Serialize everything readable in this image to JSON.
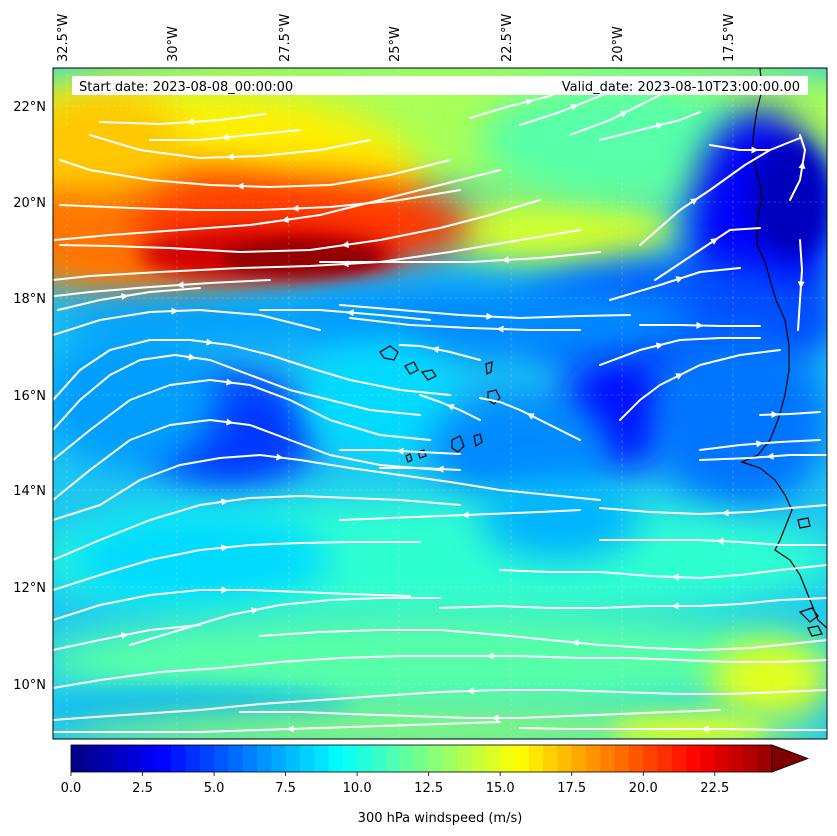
{
  "header": {
    "start_date": "Start date: 2023-08-08_00:00:00",
    "valid_date": "Valid_date: 2023-08-10T23:00:00.00"
  },
  "lon_labels": [
    "32.5°W",
    "30°W",
    "27.5°W",
    "25°W",
    "22.5°W",
    "20°W",
    "17.5°W"
  ],
  "lat_labels": [
    "22°N",
    "20°N",
    "18°N",
    "16°N",
    "14°N",
    "12°N",
    "10°N"
  ],
  "colorbar": {
    "ticks": [
      "0.0",
      "2.5",
      "5.0",
      "7.5",
      "10.0",
      "12.5",
      "15.0",
      "17.5",
      "20.0",
      "22.5"
    ],
    "label": "300 hPa windspeed (m/s)",
    "min": 0,
    "max": 25,
    "extend": "max",
    "colormap": "jet"
  },
  "colors": {
    "streamline": "#ffffff",
    "coastline": "#000000",
    "jet_dark_blue": "#00008f",
    "jet_cyan": "#00ffff",
    "jet_yellow": "#ffff00",
    "jet_dark_red": "#800000"
  }
}
